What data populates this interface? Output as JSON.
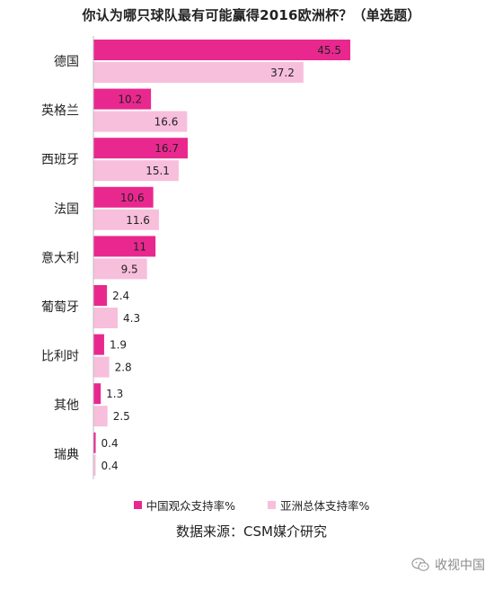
{
  "chart_data": {
    "type": "bar",
    "orientation": "horizontal",
    "title": "你认为哪只球队最有可能赢得2016欧洲杯？（单选题）",
    "categories": [
      "德国",
      "英格兰",
      "西班牙",
      "法国",
      "意大利",
      "葡萄牙",
      "比利时",
      "其他",
      "瑞典"
    ],
    "series": [
      {
        "name": "中国观众支持率%",
        "color": "#e9288f",
        "values": [
          45.5,
          10.2,
          16.7,
          10.6,
          11,
          2.4,
          1.9,
          1.3,
          0.4
        ]
      },
      {
        "name": "亚洲总体支持率%",
        "color": "#f7bfdc",
        "values": [
          37.2,
          16.6,
          15.1,
          11.6,
          9.5,
          4.3,
          2.8,
          2.5,
          0.4
        ]
      }
    ],
    "xlim": [
      0,
      50
    ],
    "grid": false,
    "legend_position": "bottom"
  },
  "source_note": "数据来源：CSM媒介研究",
  "watermark": {
    "icon": "wechat-icon",
    "text": "收视中国"
  }
}
